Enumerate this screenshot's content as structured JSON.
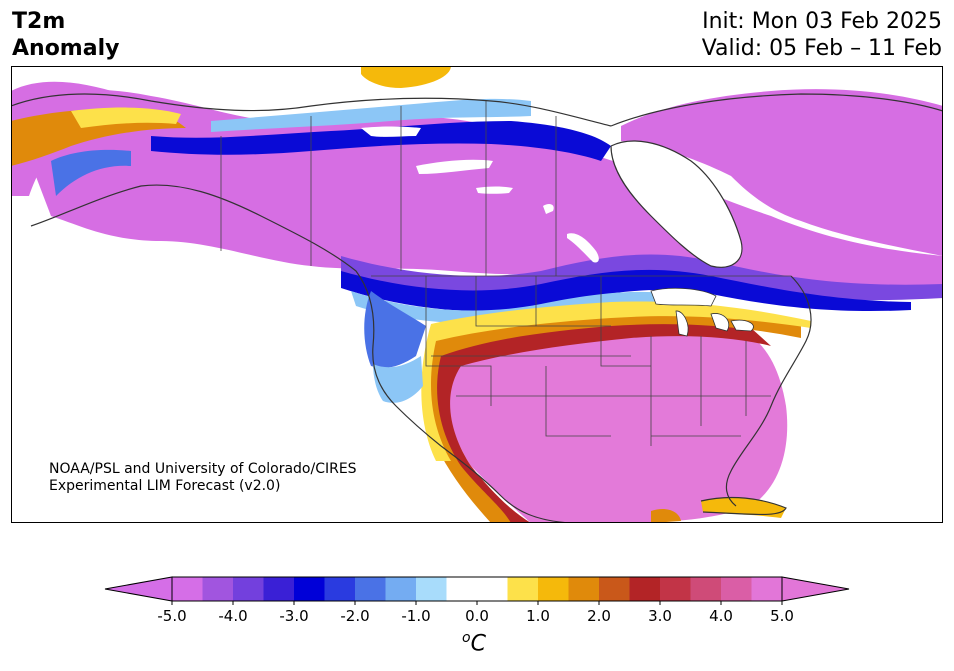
{
  "title": {
    "line1": "T2m",
    "line2": "Anomaly"
  },
  "dates": {
    "init": "Init: Mon 03 Feb 2025",
    "valid": "Valid: 05 Feb – 11 Feb"
  },
  "credit": {
    "line1": "NOAA/PSL and University of Colorado/CIRES",
    "line2": "Experimental LIM Forecast (v2.0)"
  },
  "colorbar": {
    "ticks": [
      "-5.0",
      "-4.0",
      "-3.0",
      "-2.0",
      "-1.0",
      "0.0",
      "1.0",
      "2.0",
      "3.0",
      "4.0",
      "5.0"
    ],
    "unit_sup": "o",
    "unit": "C",
    "range": [
      -5.0,
      5.0
    ],
    "colors": [
      "#d56ee7",
      "#a155df",
      "#7340dd",
      "#3a20d6",
      "#0000d8",
      "#2a3be0",
      "#4a72e6",
      "#74acf2",
      "#a8dcfb",
      "#ffffff",
      "#ffffff",
      "#fde14a",
      "#f5b90b",
      "#e08a0b",
      "#c9581a",
      "#b32426",
      "#c23447",
      "#cf4b78",
      "#da5ea6",
      "#e276d8"
    ]
  },
  "map_colors": {
    "strong_cold": "#d66ee3",
    "cold": "#7a48e0",
    "mid_cold": "#0a0ad6",
    "light_cold": "#8cc6f6",
    "strong_warm": "#e37ad9",
    "warm": "#b32426",
    "mid_warm": "#e08a0b",
    "light_warm": "#fde14a",
    "lakes": "#ffffff",
    "border": "#333333"
  }
}
